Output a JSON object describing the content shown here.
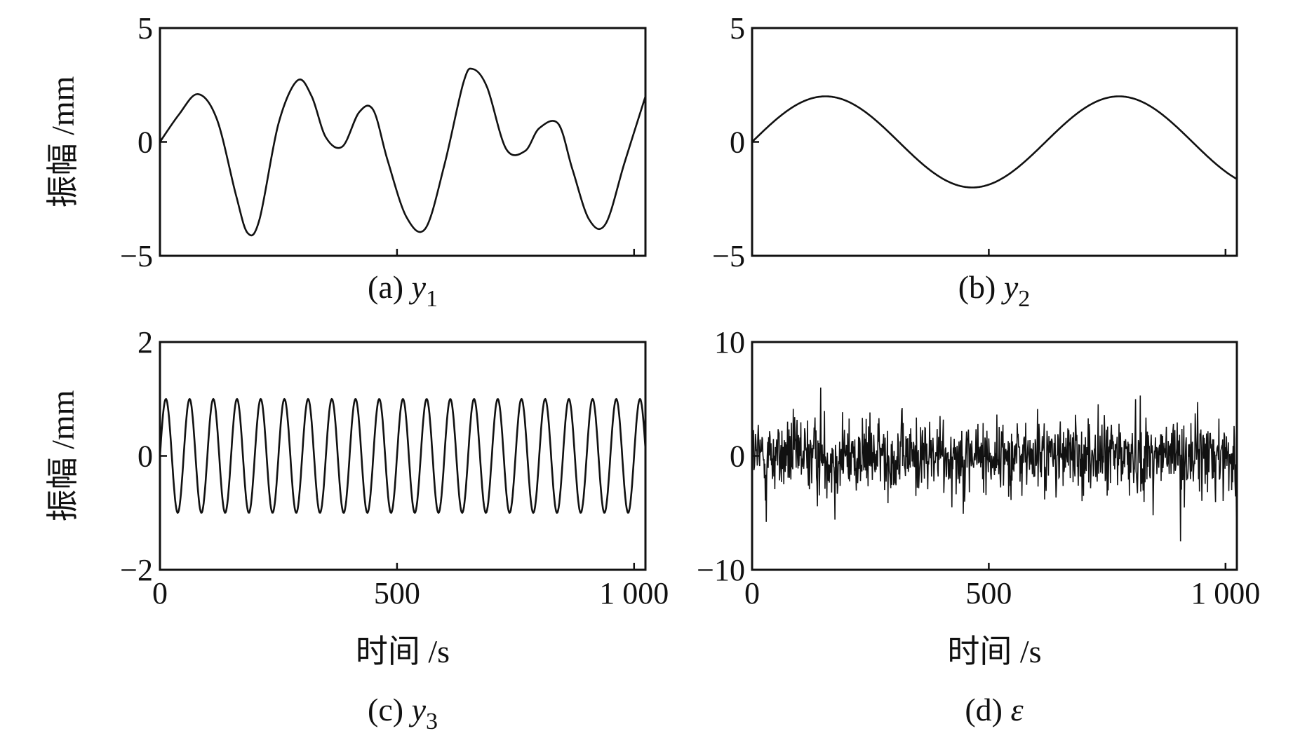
{
  "chart_data": [
    {
      "id": "y1",
      "type": "line",
      "caption": {
        "prefix": "(a) ",
        "var": "y",
        "sub": "1"
      },
      "ylabel": "振幅 /mm",
      "xlabel": "",
      "xlim": [
        0,
        1024
      ],
      "ylim": [
        -5,
        5
      ],
      "yticks": [
        5,
        0,
        -5
      ],
      "ytick_labels": [
        "5",
        "0",
        "−5"
      ],
      "xticks": [
        500,
        1000
      ],
      "xtick_labels": [],
      "series": [
        {
          "x": [
            0,
            40,
            80,
            120,
            160,
            185,
            210,
            250,
            290,
            320,
            350,
            385,
            420,
            450,
            480,
            520,
            560,
            600,
            640,
            660,
            690,
            730,
            770,
            800,
            840,
            870,
            905,
            940,
            980,
            1024
          ],
          "values": [
            0,
            1.2,
            2.1,
            1.0,
            -2.3,
            -4.0,
            -3.4,
            0.8,
            2.7,
            2.0,
            0.2,
            -0.2,
            1.3,
            1.4,
            -0.8,
            -3.3,
            -3.8,
            -1.0,
            2.6,
            3.2,
            2.4,
            -0.3,
            -0.4,
            0.6,
            0.8,
            -1.2,
            -3.4,
            -3.6,
            -0.9,
            2.0
          ]
        }
      ]
    },
    {
      "id": "y2",
      "type": "line",
      "caption": {
        "prefix": "(b) ",
        "var": "y",
        "sub": "2"
      },
      "ylabel": "",
      "xlabel": "",
      "xlim": [
        0,
        1024
      ],
      "ylim": [
        -5,
        5
      ],
      "yticks": [
        5,
        0,
        -5
      ],
      "ytick_labels": [
        "5",
        "0",
        "−5"
      ],
      "xticks": [
        500,
        1000
      ],
      "xtick_labels": [],
      "function": {
        "kind": "sine",
        "amplitude": 2,
        "period": 620,
        "phase": 0
      }
    },
    {
      "id": "y3",
      "type": "line",
      "caption": {
        "prefix": "(c) ",
        "var": "y",
        "sub": "3"
      },
      "ylabel": "振幅 /mm",
      "xlabel": "时间 /s",
      "xlim": [
        0,
        1024
      ],
      "ylim": [
        -2,
        2
      ],
      "yticks": [
        2,
        0,
        -2
      ],
      "ytick_labels": [
        "2",
        "0",
        "−2"
      ],
      "xticks": [
        0,
        500,
        1000
      ],
      "xtick_labels": [
        "0",
        "500",
        "1 000"
      ],
      "function": {
        "kind": "sine",
        "amplitude": 1,
        "period": 50,
        "phase": 0
      }
    },
    {
      "id": "eps",
      "type": "line",
      "caption": {
        "prefix": "(d) ",
        "var": "ε",
        "sub": ""
      },
      "ylabel": "",
      "xlabel": "时间 /s",
      "xlim": [
        0,
        1024
      ],
      "ylim": [
        -10,
        10
      ],
      "yticks": [
        10,
        0,
        -10
      ],
      "ytick_labels": [
        "10",
        "0",
        "−10"
      ],
      "xticks": [
        0,
        500,
        1000
      ],
      "xtick_labels": [
        "0",
        "500",
        "1 000"
      ],
      "function": {
        "kind": "noise",
        "std": 2,
        "n": 1024,
        "spikes": [
          [
            145,
            6.0
          ],
          [
            905,
            -7.5
          ],
          [
            30,
            -5.8
          ],
          [
            175,
            -5.6
          ],
          [
            820,
            5.3
          ],
          [
            1040,
            -5.4
          ]
        ]
      }
    }
  ]
}
